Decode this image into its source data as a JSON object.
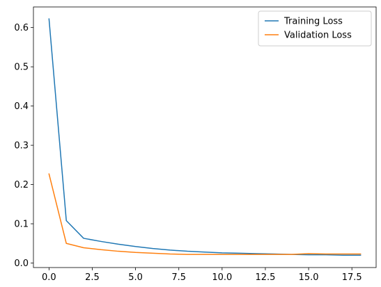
{
  "chart_data": {
    "type": "line",
    "title": "",
    "xlabel": "",
    "ylabel": "",
    "xlim": [
      -0.9,
      18.9
    ],
    "ylim": [
      -0.0115,
      0.6525
    ],
    "xticks": [
      0.0,
      2.5,
      5.0,
      7.5,
      10.0,
      12.5,
      15.0,
      17.5
    ],
    "xtick_labels": [
      "0.0",
      "2.5",
      "5.0",
      "7.5",
      "10.0",
      "12.5",
      "15.0",
      "17.5"
    ],
    "yticks": [
      0.0,
      0.1,
      0.2,
      0.3,
      0.4,
      0.5,
      0.6
    ],
    "ytick_labels": [
      "0.0",
      "0.1",
      "0.2",
      "0.3",
      "0.4",
      "0.5",
      "0.6"
    ],
    "grid": false,
    "legend_position": "top-right",
    "x": [
      0,
      1,
      2,
      3,
      4,
      5,
      6,
      7,
      8,
      9,
      10,
      11,
      12,
      13,
      14,
      15,
      16,
      17,
      18
    ],
    "series": [
      {
        "name": "Training Loss",
        "color": "#1f77b4",
        "values": [
          0.622,
          0.108,
          0.063,
          0.055,
          0.048,
          0.042,
          0.037,
          0.033,
          0.03,
          0.028,
          0.026,
          0.025,
          0.024,
          0.023,
          0.022,
          0.021,
          0.021,
          0.02,
          0.02
        ]
      },
      {
        "name": "Validation Loss",
        "color": "#ff7f0e",
        "values": [
          0.227,
          0.05,
          0.039,
          0.034,
          0.03,
          0.027,
          0.025,
          0.023,
          0.022,
          0.022,
          0.022,
          0.022,
          0.022,
          0.022,
          0.022,
          0.024,
          0.023,
          0.023,
          0.023
        ]
      }
    ]
  }
}
